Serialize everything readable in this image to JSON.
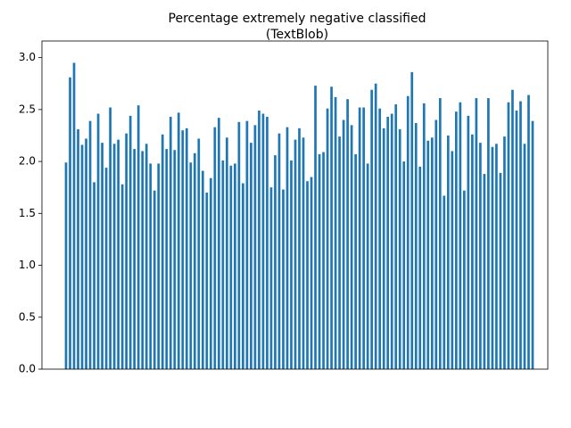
{
  "chart_data": {
    "type": "bar",
    "title": [
      "Percentage extremely negative classified",
      "(TextBlob)"
    ],
    "categories": [
      null,
      null,
      null,
      null,
      null,
      null,
      null,
      null,
      null,
      null,
      null,
      null,
      null,
      null,
      null,
      null,
      null,
      null,
      null,
      null,
      null,
      null,
      null,
      null,
      null,
      null,
      null,
      null,
      null,
      null,
      null,
      null,
      null,
      null,
      null,
      null,
      null,
      null,
      null,
      null,
      null,
      null,
      null,
      null,
      null,
      null,
      null,
      null,
      null,
      null,
      null,
      null,
      null,
      null,
      null,
      null,
      null,
      null,
      null,
      null,
      null,
      null,
      null,
      null,
      null,
      null,
      null,
      null,
      null,
      null,
      null,
      null,
      null,
      null,
      null,
      null,
      null,
      null,
      null,
      null,
      null,
      null,
      null,
      null,
      null,
      null,
      null,
      null,
      null,
      null,
      null,
      null,
      null,
      null,
      null,
      null,
      null,
      null,
      null,
      null,
      null,
      null,
      null,
      null,
      null,
      null,
      null,
      null,
      null,
      null,
      null,
      null,
      null,
      null,
      null,
      null,
      null
    ],
    "values": [
      1.99,
      2.81,
      2.95,
      2.31,
      2.16,
      2.22,
      2.39,
      1.8,
      2.46,
      2.18,
      1.94,
      2.52,
      2.17,
      2.21,
      1.78,
      2.27,
      2.44,
      2.12,
      2.54,
      2.1,
      2.17,
      1.98,
      1.72,
      1.98,
      2.26,
      2.12,
      2.43,
      2.11,
      2.47,
      2.3,
      2.32,
      1.99,
      2.08,
      2.22,
      1.91,
      1.7,
      1.84,
      2.33,
      2.42,
      2.01,
      2.23,
      1.96,
      1.98,
      2.38,
      1.79,
      2.39,
      2.18,
      2.35,
      2.49,
      2.46,
      2.43,
      1.75,
      2.06,
      2.27,
      1.73,
      2.33,
      2.01,
      2.21,
      2.32,
      2.23,
      1.81,
      1.85,
      2.73,
      2.07,
      2.09,
      2.51,
      2.72,
      2.62,
      2.24,
      2.4,
      2.6,
      2.35,
      2.07,
      2.52,
      2.52,
      1.98,
      2.69,
      2.75,
      2.51,
      2.32,
      2.43,
      2.46,
      2.55,
      2.31,
      2.0,
      2.63,
      2.86,
      2.37,
      1.95,
      2.56,
      2.2,
      2.23,
      2.4,
      2.61,
      1.67,
      2.25,
      2.1,
      2.48,
      2.57,
      1.72,
      2.44,
      2.26,
      2.61,
      2.18,
      1.88,
      2.61,
      2.14,
      2.17,
      1.89,
      2.24,
      2.57,
      2.69,
      2.49,
      2.58,
      2.17,
      2.64,
      2.39
    ],
    "color": "#1f77b4",
    "ylim": [
      0,
      3.16
    ],
    "yticks": [
      {
        "value": 0,
        "label": "0.0"
      },
      0.5,
      {
        "value": 1,
        "label": "1.0"
      },
      1.5,
      {
        "value": 2,
        "label": "2.0"
      },
      2.5,
      {
        "value": 3,
        "label": "3.0"
      }
    ],
    "grid": false
  }
}
